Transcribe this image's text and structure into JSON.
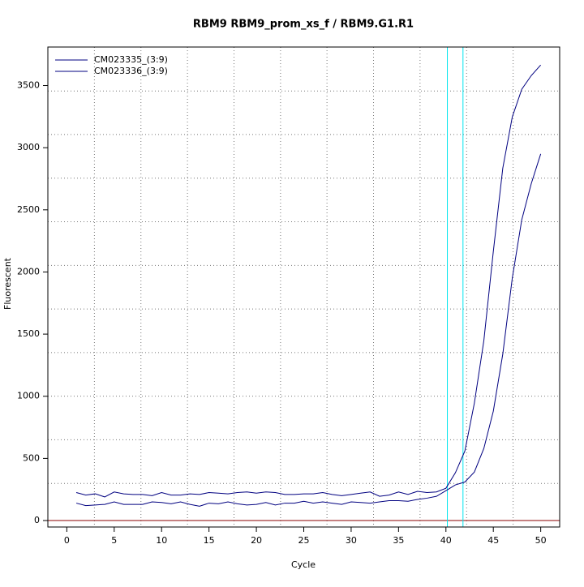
{
  "chart_data": {
    "type": "line",
    "title": "RBM9  RBM9_prom_xs_f / RBM9.G1.R1",
    "x_label": "Cycle",
    "y_label": "Fluorescent",
    "x": [
      1,
      2,
      3,
      4,
      5,
      6,
      7,
      8,
      9,
      10,
      11,
      12,
      13,
      14,
      15,
      16,
      17,
      18,
      19,
      20,
      21,
      22,
      23,
      24,
      25,
      26,
      27,
      28,
      29,
      30,
      31,
      32,
      33,
      34,
      35,
      36,
      37,
      38,
      39,
      40,
      41,
      42,
      43,
      44,
      45,
      46,
      47,
      48,
      49,
      50
    ],
    "series": [
      {
        "name": "CM023335_(3:9)",
        "color": "#000080",
        "values": [
          225,
          205,
          215,
          190,
          230,
          215,
          210,
          210,
          200,
          225,
          205,
          205,
          215,
          210,
          225,
          220,
          215,
          225,
          230,
          220,
          230,
          225,
          210,
          210,
          215,
          215,
          225,
          210,
          200,
          210,
          220,
          230,
          195,
          205,
          230,
          210,
          235,
          225,
          230,
          260,
          385,
          560,
          945,
          1447,
          2165,
          2836,
          3247,
          3470,
          3580,
          3665
        ]
      },
      {
        "name": "CM023336_(3:9)",
        "color": "#000080",
        "values": [
          140,
          120,
          125,
          130,
          150,
          130,
          130,
          130,
          150,
          145,
          135,
          150,
          130,
          115,
          140,
          135,
          150,
          135,
          125,
          130,
          145,
          125,
          140,
          140,
          155,
          140,
          150,
          140,
          130,
          150,
          145,
          140,
          150,
          160,
          160,
          155,
          170,
          180,
          195,
          240,
          287,
          310,
          390,
          580,
          880,
          1340,
          1950,
          2420,
          2710,
          2950
        ]
      }
    ],
    "xlim": [
      -2,
      52
    ],
    "ylim": [
      -52,
      3810
    ],
    "xticks": [
      0,
      5,
      10,
      15,
      20,
      25,
      30,
      35,
      40,
      45,
      50
    ],
    "yticks": [
      0,
      500,
      1000,
      1500,
      2000,
      2500,
      3000,
      3500
    ],
    "xgrid": [
      2.91,
      7.82,
      12.73,
      17.64,
      22.55,
      27.45,
      32.36,
      37.27,
      42.18,
      47.09
    ],
    "ygrid": [
      299,
      650,
      1001,
      1351,
      1702,
      2053,
      2404,
      2755,
      3106,
      3456
    ],
    "thresholds": [
      40.15,
      41.8
    ],
    "threshold_color": "#00e5ee",
    "baseline": 0,
    "baseline_color": "#8b0000",
    "legend": "top-left"
  }
}
